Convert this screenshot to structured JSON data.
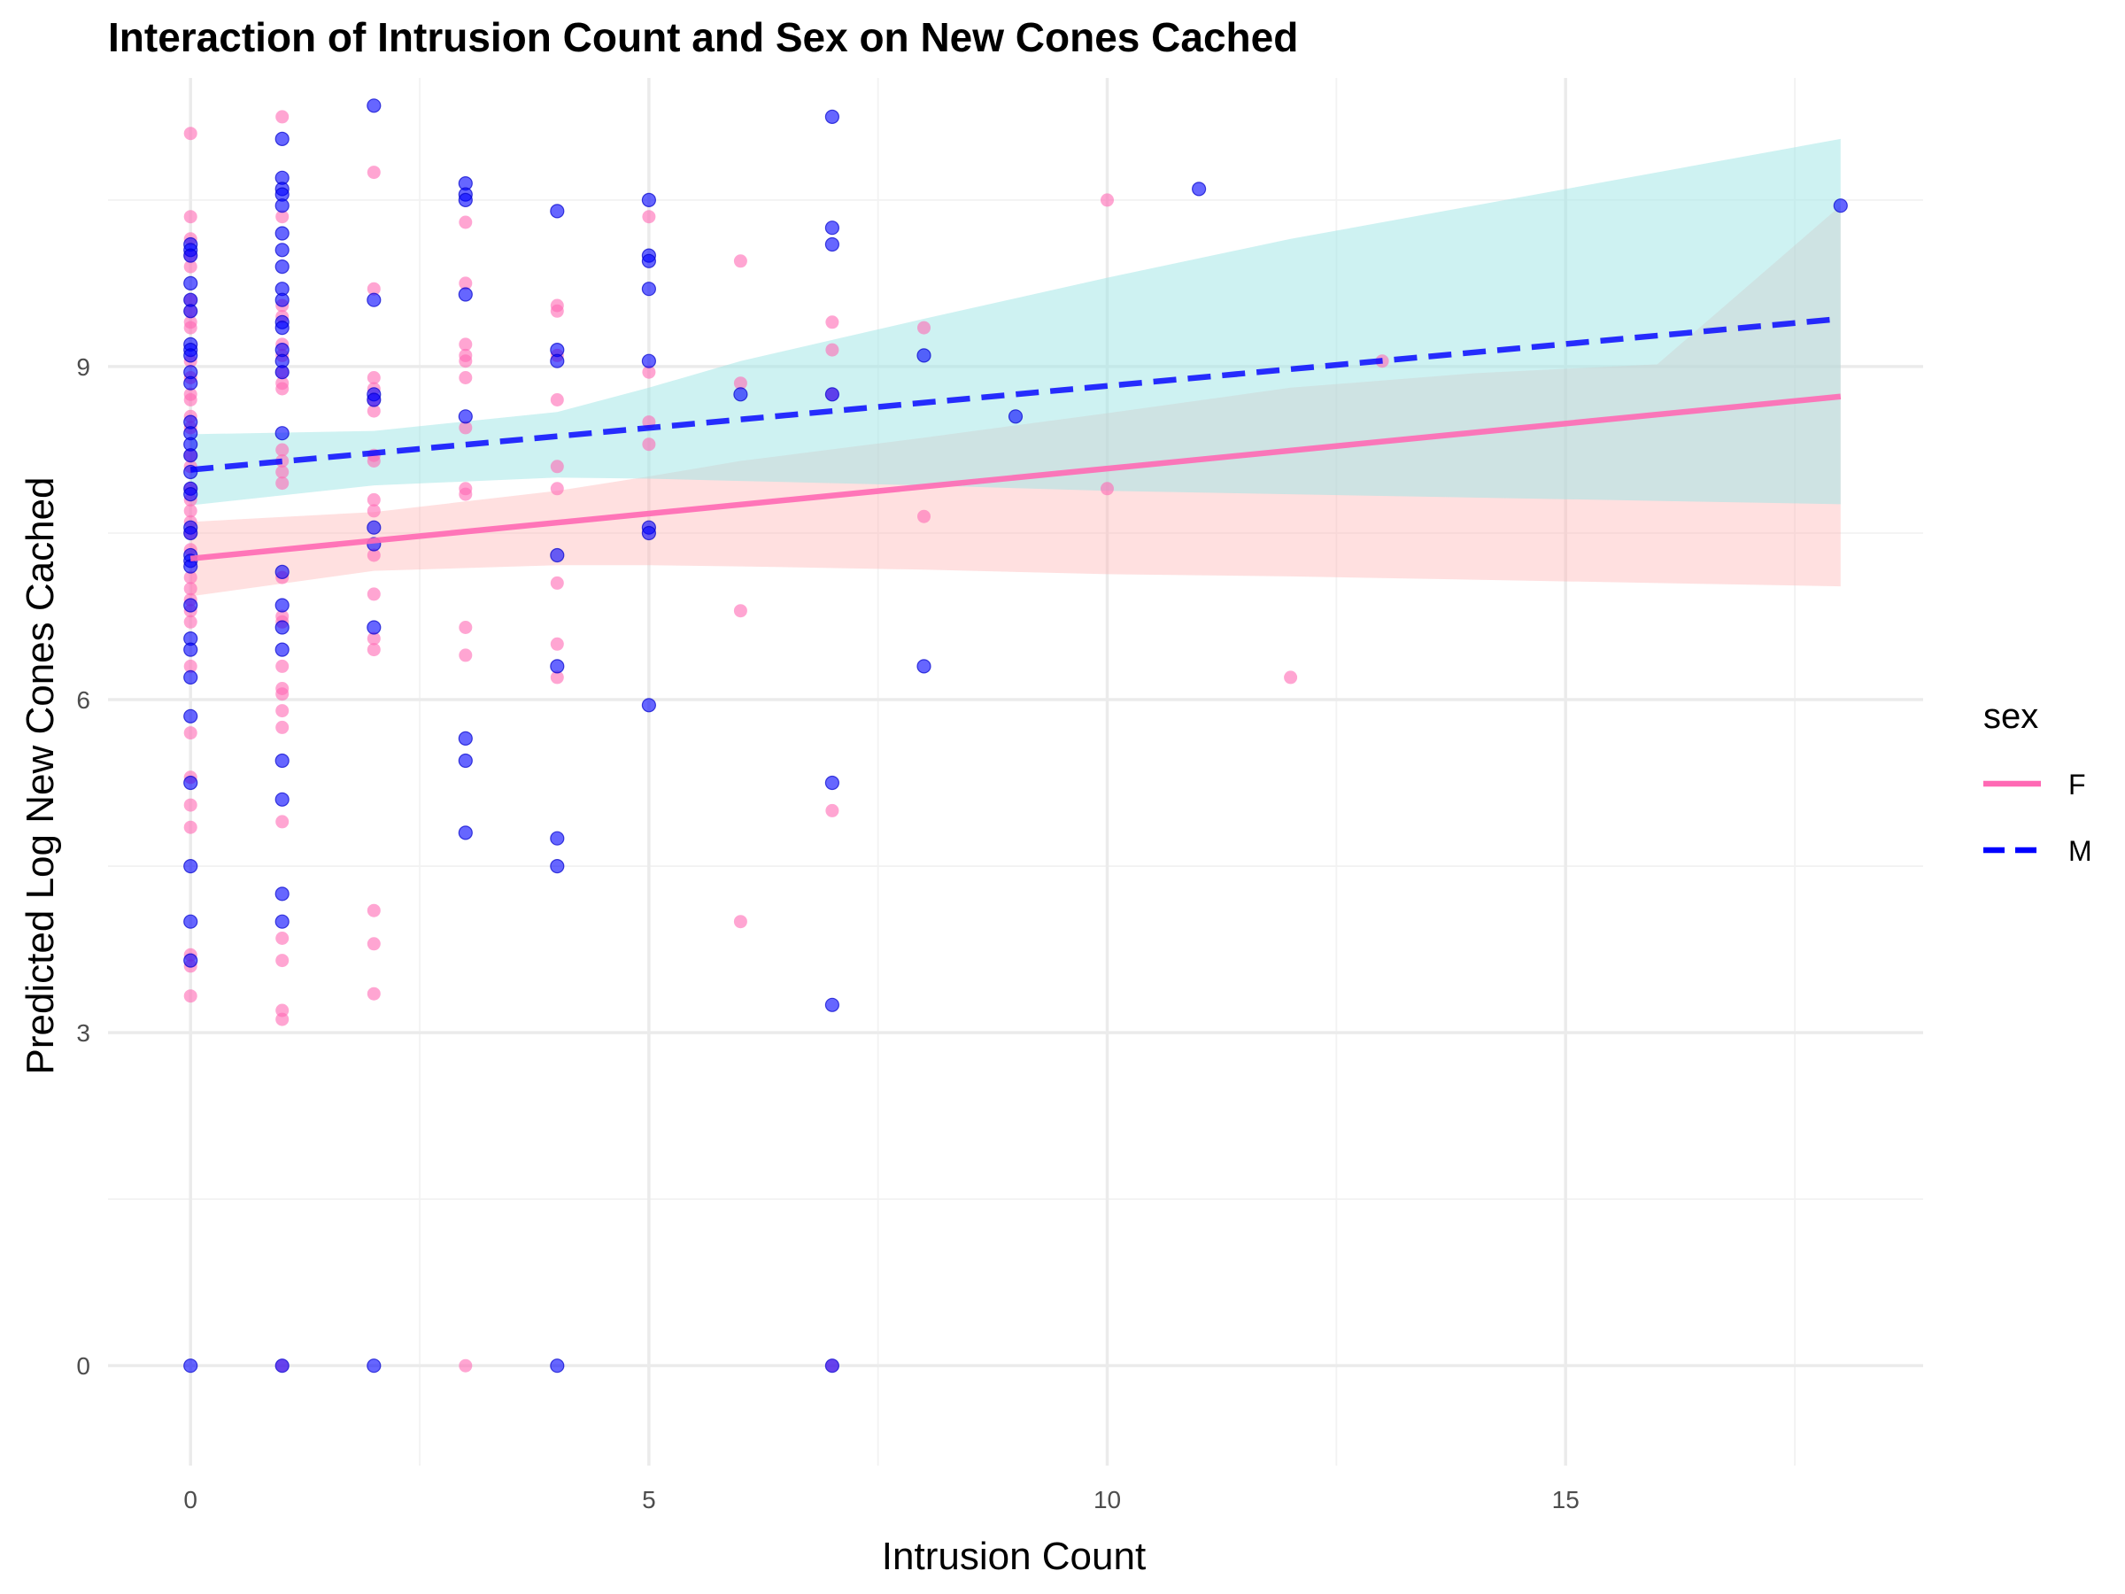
{
  "chart_data": {
    "type": "scatter",
    "title": "Interaction of Intrusion Count and Sex on New Cones Cached",
    "xlabel": "Intrusion Count",
    "ylabel": "Predicted Log New Cones Cached",
    "xlim": [
      -0.9,
      18.9
    ],
    "ylim": [
      -0.9,
      11.6
    ],
    "x_ticks": [
      0,
      5,
      10,
      15
    ],
    "y_ticks": [
      0,
      3,
      6,
      9
    ],
    "grid": true,
    "legend": {
      "title": "sex",
      "placement": "right"
    },
    "series": [
      {
        "name": "F",
        "color": "#ff69b4",
        "point_color": "#ff69b4",
        "line_style": "solid",
        "ribbon_color": "#ffb6b6",
        "fit": {
          "x": [
            0,
            18
          ],
          "y": [
            7.27,
            8.73
          ]
        },
        "ribbon": {
          "x": [
            0,
            2,
            4,
            5,
            6,
            8,
            10,
            12,
            14,
            16,
            18
          ],
          "lower": [
            6.93,
            7.16,
            7.21,
            7.21,
            7.2,
            7.17,
            7.13,
            7.11,
            7.08,
            7.05,
            7.02
          ],
          "upper": [
            7.6,
            7.69,
            7.88,
            8.01,
            8.15,
            8.36,
            8.58,
            8.81,
            8.94,
            9.02,
            10.45
          ]
        },
        "points": [
          [
            0,
            11.1
          ],
          [
            0,
            10.35
          ],
          [
            0,
            10.15
          ],
          [
            0,
            10.0
          ],
          [
            0,
            9.9
          ],
          [
            0,
            9.6
          ],
          [
            0,
            9.5
          ],
          [
            0,
            9.4
          ],
          [
            0,
            9.35
          ],
          [
            0,
            9.05
          ],
          [
            0,
            8.9
          ],
          [
            0,
            8.75
          ],
          [
            0,
            8.7
          ],
          [
            0,
            8.55
          ],
          [
            0,
            8.45
          ],
          [
            0,
            8.2
          ],
          [
            0,
            8.1
          ],
          [
            0,
            7.9
          ],
          [
            0,
            7.8
          ],
          [
            0,
            7.7
          ],
          [
            0,
            7.6
          ],
          [
            0,
            7.5
          ],
          [
            0,
            7.35
          ],
          [
            0,
            7.1
          ],
          [
            0,
            7.0
          ],
          [
            0,
            6.9
          ],
          [
            0,
            6.8
          ],
          [
            0,
            6.7
          ],
          [
            0,
            6.3
          ],
          [
            0,
            5.7
          ],
          [
            0,
            5.3
          ],
          [
            0,
            5.05
          ],
          [
            0,
            4.85
          ],
          [
            0,
            3.7
          ],
          [
            0,
            3.6
          ],
          [
            0,
            3.33
          ],
          [
            1,
            11.25
          ],
          [
            1,
            10.35
          ],
          [
            1,
            9.55
          ],
          [
            1,
            9.45
          ],
          [
            1,
            9.2
          ],
          [
            1,
            9.1
          ],
          [
            1,
            8.95
          ],
          [
            1,
            8.85
          ],
          [
            1,
            8.8
          ],
          [
            1,
            8.25
          ],
          [
            1,
            8.15
          ],
          [
            1,
            8.05
          ],
          [
            1,
            7.95
          ],
          [
            1,
            7.1
          ],
          [
            1,
            6.75
          ],
          [
            1,
            6.7
          ],
          [
            1,
            6.3
          ],
          [
            1,
            6.1
          ],
          [
            1,
            6.05
          ],
          [
            1,
            5.9
          ],
          [
            1,
            5.75
          ],
          [
            1,
            4.9
          ],
          [
            1,
            3.85
          ],
          [
            1,
            3.65
          ],
          [
            1,
            3.2
          ],
          [
            1,
            3.12
          ],
          [
            1,
            0
          ],
          [
            2,
            10.75
          ],
          [
            2,
            9.7
          ],
          [
            2,
            8.9
          ],
          [
            2,
            8.8
          ],
          [
            2,
            8.7
          ],
          [
            2,
            8.6
          ],
          [
            2,
            8.2
          ],
          [
            2,
            8.15
          ],
          [
            2,
            7.8
          ],
          [
            2,
            7.7
          ],
          [
            2,
            7.3
          ],
          [
            2,
            6.95
          ],
          [
            2,
            6.55
          ],
          [
            2,
            6.45
          ],
          [
            2,
            4.1
          ],
          [
            2,
            3.8
          ],
          [
            2,
            3.35
          ],
          [
            3,
            10.3
          ],
          [
            3,
            9.75
          ],
          [
            3,
            9.2
          ],
          [
            3,
            9.05
          ],
          [
            3,
            9.1
          ],
          [
            3,
            8.9
          ],
          [
            3,
            8.45
          ],
          [
            3,
            7.9
          ],
          [
            3,
            7.85
          ],
          [
            3,
            6.65
          ],
          [
            3,
            6.4
          ],
          [
            3,
            0
          ],
          [
            4,
            9.55
          ],
          [
            4,
            9.5
          ],
          [
            4,
            9.1
          ],
          [
            4,
            8.7
          ],
          [
            4,
            8.1
          ],
          [
            4,
            7.9
          ],
          [
            4,
            7.05
          ],
          [
            4,
            6.5
          ],
          [
            4,
            6.2
          ],
          [
            5,
            10.35
          ],
          [
            5,
            8.95
          ],
          [
            5,
            8.5
          ],
          [
            5,
            8.3
          ],
          [
            6,
            9.95
          ],
          [
            6,
            8.85
          ],
          [
            6,
            6.8
          ],
          [
            6,
            4.0
          ],
          [
            7,
            9.4
          ],
          [
            7,
            9.15
          ],
          [
            7,
            8.75
          ],
          [
            7,
            5.0
          ],
          [
            7,
            0
          ],
          [
            8,
            9.35
          ],
          [
            8,
            7.65
          ],
          [
            10,
            10.5
          ],
          [
            10,
            7.9
          ],
          [
            12,
            6.2
          ],
          [
            13,
            9.05
          ]
        ]
      },
      {
        "name": "M",
        "color": "#0000ff",
        "point_color": "#0000ff",
        "line_style": "dashed",
        "ribbon_color": "#9ee6e6",
        "fit": {
          "x": [
            0,
            18
          ],
          "y": [
            8.07,
            9.43
          ]
        },
        "ribbon": {
          "x": [
            0,
            2,
            4,
            5,
            6,
            8,
            10,
            12,
            14,
            16,
            18
          ],
          "lower": [
            7.75,
            7.93,
            8.0,
            7.99,
            7.97,
            7.93,
            7.88,
            7.85,
            7.82,
            7.79,
            7.76
          ],
          "upper": [
            8.39,
            8.42,
            8.59,
            8.81,
            9.05,
            9.43,
            9.8,
            10.15,
            10.45,
            10.75,
            11.05
          ]
        },
        "points": [
          [
            0,
            10.1
          ],
          [
            0,
            10.05
          ],
          [
            0,
            10.0
          ],
          [
            0,
            9.75
          ],
          [
            0,
            9.6
          ],
          [
            0,
            9.5
          ],
          [
            0,
            9.2
          ],
          [
            0,
            9.15
          ],
          [
            0,
            9.1
          ],
          [
            0,
            8.95
          ],
          [
            0,
            8.85
          ],
          [
            0,
            8.5
          ],
          [
            0,
            8.4
          ],
          [
            0,
            8.3
          ],
          [
            0,
            8.2
          ],
          [
            0,
            8.05
          ],
          [
            0,
            7.9
          ],
          [
            0,
            7.85
          ],
          [
            0,
            7.55
          ],
          [
            0,
            7.5
          ],
          [
            0,
            7.3
          ],
          [
            0,
            7.25
          ],
          [
            0,
            7.2
          ],
          [
            0,
            6.85
          ],
          [
            0,
            6.55
          ],
          [
            0,
            6.45
          ],
          [
            0,
            6.2
          ],
          [
            0,
            5.85
          ],
          [
            0,
            5.25
          ],
          [
            0,
            4.5
          ],
          [
            0,
            4.0
          ],
          [
            0,
            3.65
          ],
          [
            0,
            0
          ],
          [
            1,
            11.05
          ],
          [
            1,
            10.7
          ],
          [
            1,
            10.6
          ],
          [
            1,
            10.55
          ],
          [
            1,
            10.45
          ],
          [
            1,
            10.2
          ],
          [
            1,
            10.05
          ],
          [
            1,
            9.9
          ],
          [
            1,
            9.7
          ],
          [
            1,
            9.6
          ],
          [
            1,
            9.4
          ],
          [
            1,
            9.35
          ],
          [
            1,
            9.15
          ],
          [
            1,
            9.05
          ],
          [
            1,
            8.95
          ],
          [
            1,
            8.4
          ],
          [
            1,
            7.15
          ],
          [
            1,
            6.85
          ],
          [
            1,
            6.65
          ],
          [
            1,
            6.45
          ],
          [
            1,
            5.45
          ],
          [
            1,
            5.1
          ],
          [
            1,
            4.25
          ],
          [
            1,
            4.0
          ],
          [
            1,
            0
          ],
          [
            2,
            11.35
          ],
          [
            2,
            9.6
          ],
          [
            2,
            8.75
          ],
          [
            2,
            8.7
          ],
          [
            2,
            7.55
          ],
          [
            2,
            7.4
          ],
          [
            2,
            6.65
          ],
          [
            2,
            0
          ],
          [
            3,
            10.65
          ],
          [
            3,
            10.55
          ],
          [
            3,
            10.5
          ],
          [
            3,
            9.65
          ],
          [
            3,
            8.55
          ],
          [
            3,
            5.65
          ],
          [
            3,
            5.45
          ],
          [
            3,
            4.8
          ],
          [
            4,
            10.4
          ],
          [
            4,
            9.15
          ],
          [
            4,
            9.05
          ],
          [
            4,
            7.3
          ],
          [
            4,
            6.3
          ],
          [
            4,
            4.75
          ],
          [
            4,
            4.5
          ],
          [
            4,
            0
          ],
          [
            5,
            10.5
          ],
          [
            5,
            10.0
          ],
          [
            5,
            9.95
          ],
          [
            5,
            9.7
          ],
          [
            5,
            9.05
          ],
          [
            5,
            7.55
          ],
          [
            5,
            7.5
          ],
          [
            5,
            5.95
          ],
          [
            6,
            8.75
          ],
          [
            7,
            11.25
          ],
          [
            7,
            10.25
          ],
          [
            7,
            10.1
          ],
          [
            7,
            8.75
          ],
          [
            7,
            5.25
          ],
          [
            7,
            3.25
          ],
          [
            7,
            0
          ],
          [
            8,
            9.1
          ],
          [
            8,
            6.3
          ],
          [
            9,
            8.55
          ],
          [
            11,
            10.6
          ],
          [
            18,
            10.45
          ]
        ]
      }
    ]
  }
}
